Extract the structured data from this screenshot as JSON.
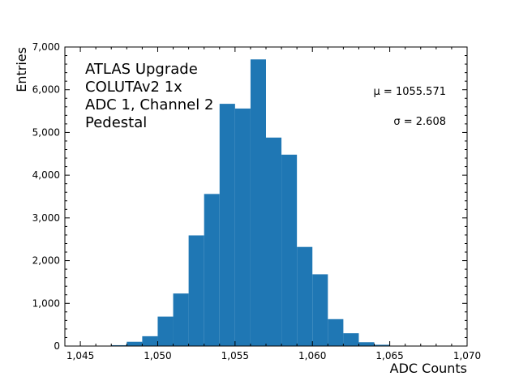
{
  "chart_data": {
    "type": "bar",
    "title": "",
    "xlabel": "ADC Counts",
    "ylabel": "Entries",
    "xlim": [
      1044,
      1070
    ],
    "ylim": [
      0,
      7000
    ],
    "bar_color": "#1f77b4",
    "grid": false,
    "x_ticks": [
      1045,
      1050,
      1055,
      1060,
      1065,
      1070
    ],
    "x_tick_labels": [
      "1,045",
      "1,050",
      "1,055",
      "1,060",
      "1,065",
      "1,070"
    ],
    "y_ticks": [
      0,
      1000,
      2000,
      3000,
      4000,
      5000,
      6000,
      7000
    ],
    "y_tick_labels": [
      "0",
      "1,000",
      "2,000",
      "3,000",
      "4,000",
      "5,000",
      "6,000",
      "7,000"
    ],
    "annotations": [
      "ATLAS Upgrade",
      "COLUTAv2 1x",
      "ADC 1, Channel 2",
      "Pedestal"
    ],
    "stats": {
      "mu": "μ = 1055.571",
      "sigma": "σ = 2.608"
    },
    "bins": [
      {
        "x0": 1047,
        "x1": 1048,
        "value": 20
      },
      {
        "x0": 1048,
        "x1": 1049,
        "value": 100
      },
      {
        "x0": 1049,
        "x1": 1050,
        "value": 230
      },
      {
        "x0": 1050,
        "x1": 1051,
        "value": 690
      },
      {
        "x0": 1051,
        "x1": 1052,
        "value": 1230
      },
      {
        "x0": 1052,
        "x1": 1053,
        "value": 2590
      },
      {
        "x0": 1053,
        "x1": 1054,
        "value": 3560
      },
      {
        "x0": 1054,
        "x1": 1055,
        "value": 5670
      },
      {
        "x0": 1055,
        "x1": 1056,
        "value": 5560
      },
      {
        "x0": 1056,
        "x1": 1057,
        "value": 6710
      },
      {
        "x0": 1057,
        "x1": 1058,
        "value": 4880
      },
      {
        "x0": 1058,
        "x1": 1059,
        "value": 4480
      },
      {
        "x0": 1059,
        "x1": 1060,
        "value": 2320
      },
      {
        "x0": 1060,
        "x1": 1061,
        "value": 1680
      },
      {
        "x0": 1061,
        "x1": 1062,
        "value": 630
      },
      {
        "x0": 1062,
        "x1": 1063,
        "value": 300
      },
      {
        "x0": 1063,
        "x1": 1064,
        "value": 90
      },
      {
        "x0": 1064,
        "x1": 1065,
        "value": 30
      }
    ]
  }
}
